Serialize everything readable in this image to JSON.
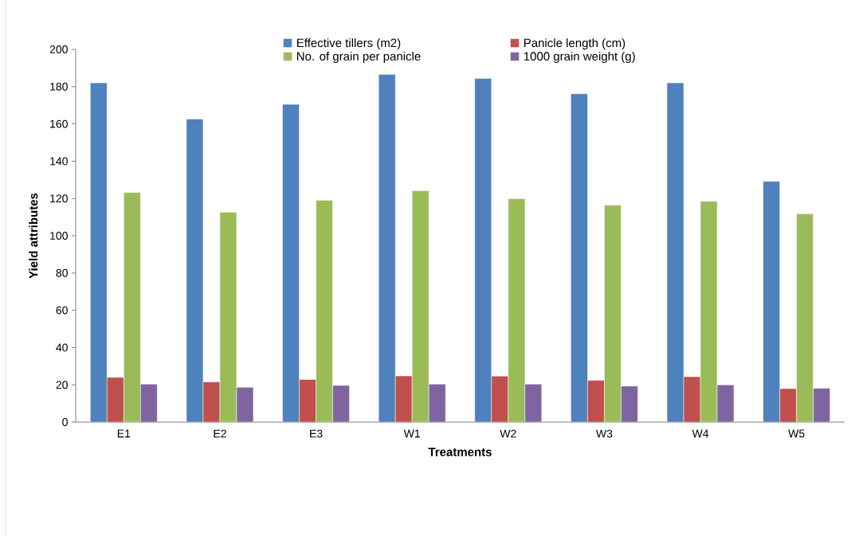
{
  "chart_data": {
    "type": "bar",
    "xlabel": "Treatments",
    "ylabel": "Yield attributes",
    "categories": [
      "E1",
      "E2",
      "E3",
      "W1",
      "W2",
      "W3",
      "W4",
      "W5"
    ],
    "series": [
      {
        "name": "Effective tillers  (m2)",
        "color": "#4f81bd",
        "values": [
          182,
          162.6,
          170.5,
          186.6,
          184.4,
          176.2,
          182,
          129.2
        ]
      },
      {
        "name": "Panicle length  (cm)",
        "color": "#c0504d",
        "values": [
          24,
          21.6,
          22.9,
          24.8,
          24.7,
          22.4,
          24.4,
          18
        ]
      },
      {
        "name": "No. of grain per panicle",
        "color": "#9bbb59",
        "values": [
          123.2,
          112.6,
          119,
          124.1,
          119.9,
          116.4,
          118.5,
          111.7
        ]
      },
      {
        "name": "1000 grain weight (g)",
        "color": "#8064a2",
        "values": [
          20.4,
          18.7,
          19.7,
          20.4,
          20.4,
          19.3,
          20,
          18.2
        ]
      }
    ],
    "ylim": [
      0,
      200
    ],
    "yticks": [
      0,
      20,
      40,
      60,
      80,
      100,
      120,
      140,
      160,
      180,
      200
    ],
    "legend": "top"
  }
}
